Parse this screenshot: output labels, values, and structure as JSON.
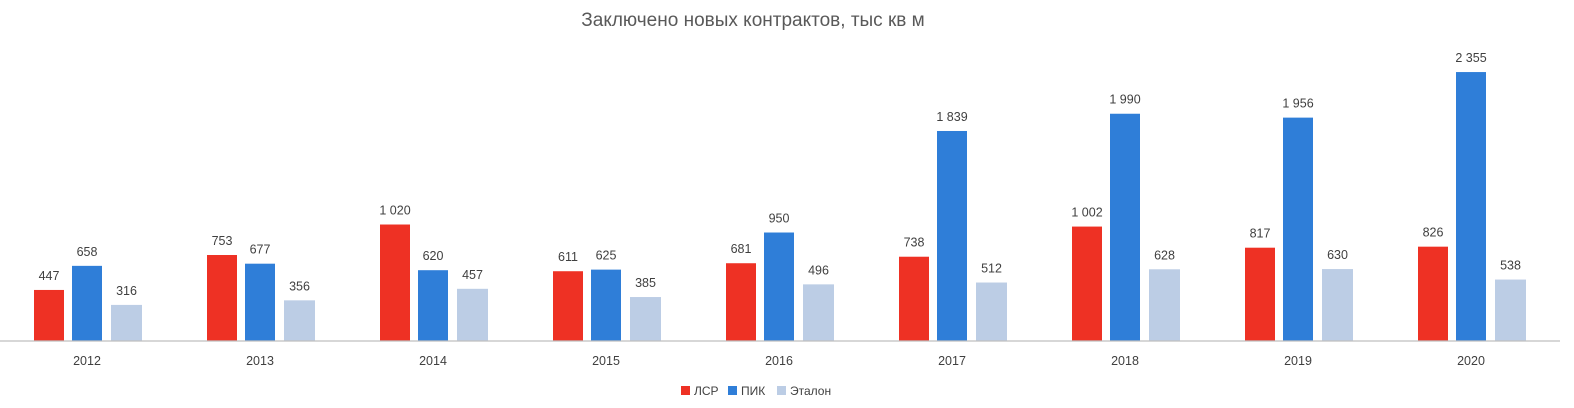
{
  "chart_data": {
    "type": "bar",
    "title": "Заключено новых контрактов, тыс кв м",
    "xlabel": "",
    "ylabel": "",
    "grid": false,
    "legend_position": "bottom",
    "categories": [
      "2012",
      "2013",
      "2014",
      "2015",
      "2016",
      "2017",
      "2018",
      "2019",
      "2020"
    ],
    "series": [
      {
        "name": "ЛСР",
        "color": "#ee3124",
        "values": [
          447,
          753,
          1020,
          611,
          681,
          738,
          1002,
          817,
          826
        ],
        "labels": [
          "447",
          "753",
          "1 020",
          "611",
          "681",
          "738",
          "1 002",
          "817",
          "826"
        ]
      },
      {
        "name": "ПИК",
        "color": "#2f7ed8",
        "values": [
          658,
          677,
          620,
          625,
          950,
          1839,
          1990,
          1956,
          2355
        ],
        "labels": [
          "658",
          "677",
          "620",
          "625",
          "950",
          "1 839",
          "1 990",
          "1 956",
          "2 355"
        ]
      },
      {
        "name": "Эталон",
        "color": "#bccde5",
        "values": [
          316,
          356,
          457,
          385,
          496,
          512,
          628,
          630,
          538
        ],
        "labels": [
          "316",
          "356",
          "457",
          "385",
          "496",
          "512",
          "628",
          "630",
          "538"
        ]
      }
    ]
  }
}
